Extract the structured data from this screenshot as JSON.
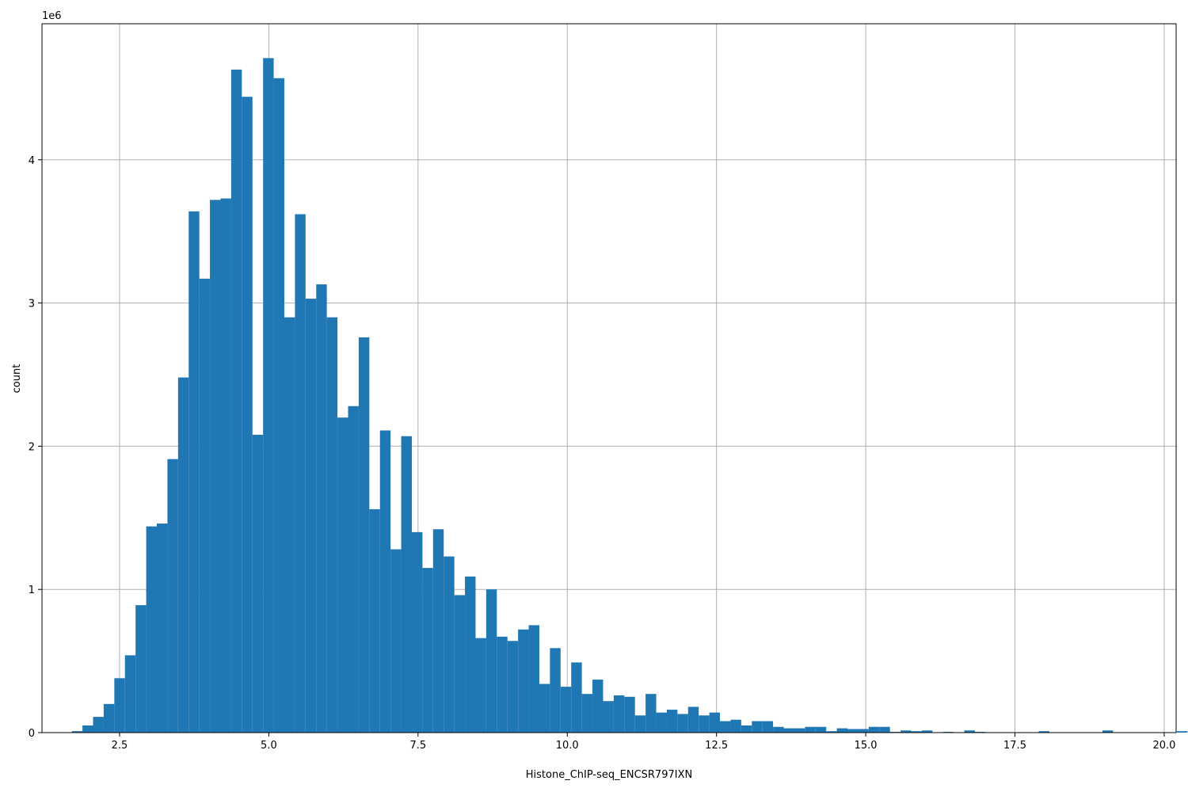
{
  "chart_data": {
    "type": "bar",
    "title": "",
    "xlabel": "Histone_ChIP-seq_ENCSR797IXN",
    "ylabel": "count",
    "y_multiplier_label": "1e6",
    "xlim": [
      1.2,
      20.2
    ],
    "ylim": [
      0,
      4.95
    ],
    "xticks": [
      2.5,
      5.0,
      7.5,
      10.0,
      12.5,
      15.0,
      17.5,
      20.0
    ],
    "xtick_labels": [
      "2.5",
      "5.0",
      "7.5",
      "10.0",
      "12.5",
      "15.0",
      "17.5",
      "20.0"
    ],
    "yticks": [
      0,
      1,
      2,
      3,
      4
    ],
    "ytick_labels": [
      "0",
      "1",
      "2",
      "3",
      "4"
    ],
    "grid": true,
    "bar_color": "#1f77b4",
    "bin_start": 1.7,
    "bin_width": 0.178,
    "values": [
      0.01,
      0.05,
      0.11,
      0.2,
      0.38,
      0.54,
      0.89,
      1.44,
      1.46,
      1.91,
      2.48,
      3.64,
      3.17,
      3.72,
      3.73,
      4.63,
      4.44,
      2.08,
      4.71,
      4.57,
      2.9,
      3.62,
      3.03,
      3.13,
      2.9,
      2.2,
      2.28,
      2.76,
      1.56,
      2.11,
      1.28,
      2.07,
      1.4,
      1.15,
      1.42,
      1.23,
      0.96,
      1.09,
      0.66,
      1.0,
      0.67,
      0.64,
      0.72,
      0.75,
      0.34,
      0.59,
      0.32,
      0.49,
      0.27,
      0.37,
      0.22,
      0.26,
      0.25,
      0.12,
      0.27,
      0.14,
      0.16,
      0.13,
      0.18,
      0.12,
      0.14,
      0.08,
      0.09,
      0.05,
      0.08,
      0.08,
      0.04,
      0.03,
      0.03,
      0.04,
      0.04,
      0.01,
      0.03,
      0.025,
      0.025,
      0.04,
      0.04,
      0.005,
      0.015,
      0.01,
      0.015,
      0.0,
      0.005,
      0.0,
      0.015,
      0.005,
      0.0,
      0.0,
      0.0,
      0.0,
      0.0,
      0.01,
      0.0,
      0.0,
      0.0,
      0.0,
      0.0,
      0.015,
      0.0,
      0.0,
      0.0,
      0.0,
      0.0,
      0.0,
      0.01,
      0.0
    ]
  }
}
